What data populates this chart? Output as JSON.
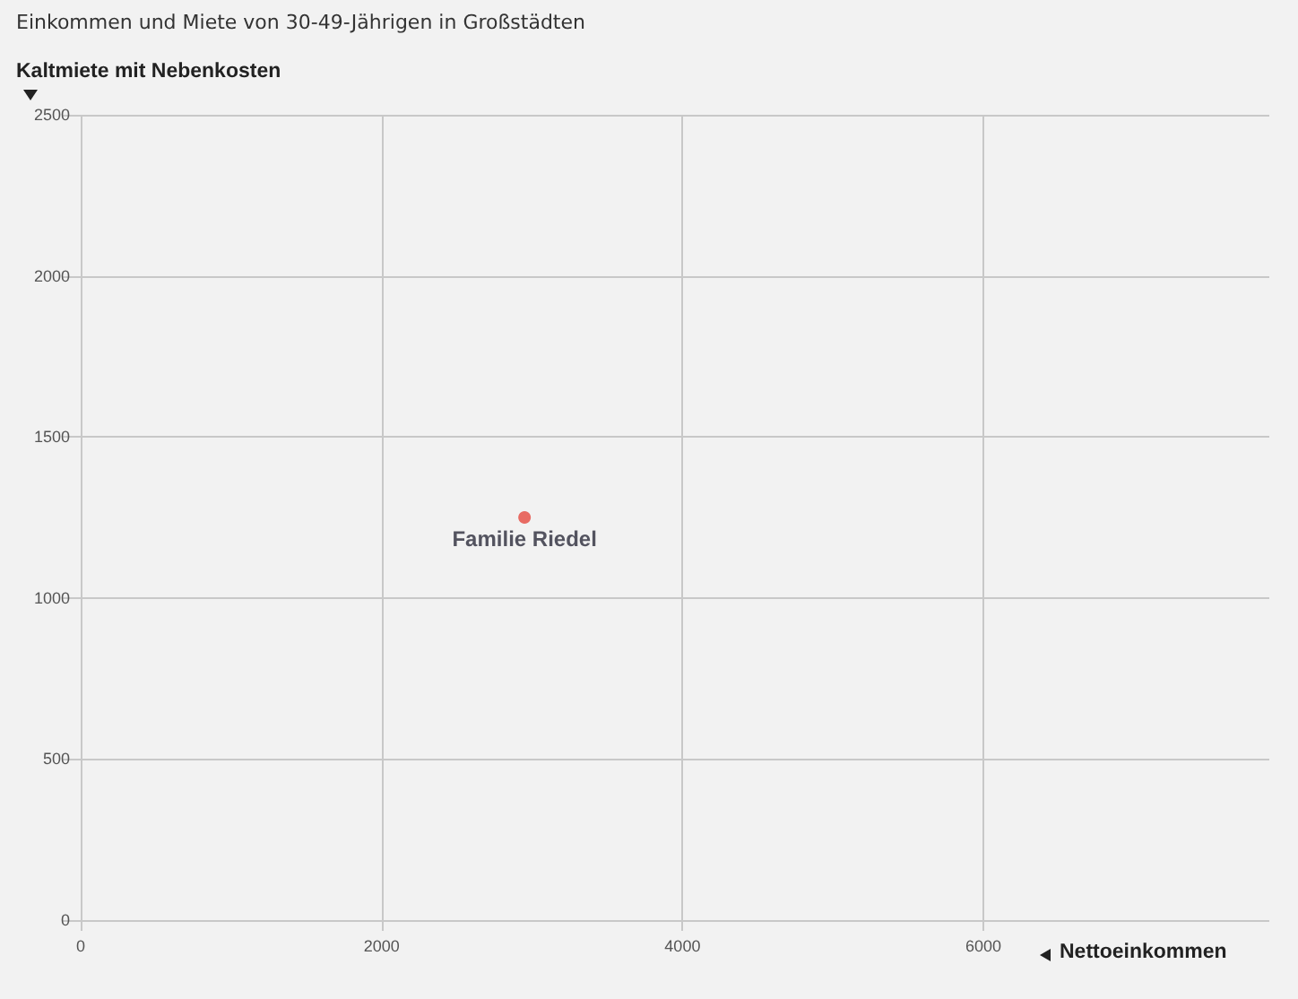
{
  "chart_data": {
    "type": "scatter",
    "title": "Einkommen und Miete von 30-49-Jährigen in Großstädten",
    "xlabel": "Nettoeinkommen",
    "ylabel": "Kaltmiete mit Nebenkosten",
    "x": [
      2950
    ],
    "values": [
      1250
    ],
    "color": "#e5483e",
    "annotations": [
      {
        "text": "Familie Riedel",
        "x": 2950,
        "y": 1250
      }
    ],
    "xlim": [
      0,
      7900
    ],
    "xticks": [
      0,
      2000,
      4000,
      6000
    ],
    "ylim": [
      0,
      2500
    ],
    "yticks": [
      0,
      500,
      1000,
      1500,
      2000,
      2500
    ],
    "grid": true,
    "marker": "circle"
  }
}
